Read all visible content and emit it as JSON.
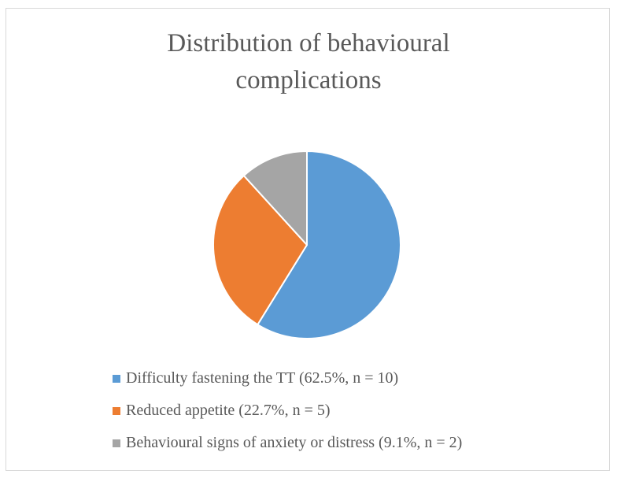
{
  "chart_data": {
    "type": "pie",
    "title_lines": [
      "Distribution of behavioural",
      "complications"
    ],
    "slices": [
      {
        "label": "Difficulty fastening the TT (62.5%, n = 10)",
        "value": 10,
        "color": "#5b9bd5"
      },
      {
        "label": "Reduced appetite (22.7%, n = 5)",
        "value": 5,
        "color": "#ed7d31"
      },
      {
        "label": "Behavioural signs of anxiety or distress (9.1%, n = 2)",
        "value": 2,
        "color": "#a5a5a5"
      }
    ],
    "legend_position": "bottom"
  }
}
